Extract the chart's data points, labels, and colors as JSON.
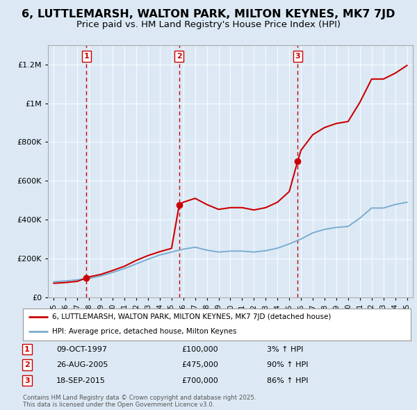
{
  "title": "6, LUTTLEMARSH, WALTON PARK, MILTON KEYNES, MK7 7JD",
  "subtitle": "Price paid vs. HM Land Registry's House Price Index (HPI)",
  "title_fontsize": 11.5,
  "subtitle_fontsize": 9.5,
  "background_color": "#dce9f5",
  "plot_bg_color": "#dce9f5",
  "legend_label_red": "6, LUTTLEMARSH, WALTON PARK, MILTON KEYNES, MK7 7JD (detached house)",
  "legend_label_blue": "HPI: Average price, detached house, Milton Keynes",
  "footer": "Contains HM Land Registry data © Crown copyright and database right 2025.\nThis data is licensed under the Open Government Licence v3.0.",
  "sales": [
    {
      "num": 1,
      "date": "09-OCT-1997",
      "price": 100000,
      "hpi_pct": "3%",
      "x": 1997.77
    },
    {
      "num": 2,
      "date": "26-AUG-2005",
      "price": 475000,
      "hpi_pct": "90%",
      "x": 2005.65
    },
    {
      "num": 3,
      "date": "18-SEP-2015",
      "price": 700000,
      "hpi_pct": "86%",
      "x": 2015.71
    }
  ],
  "ylim": [
    0,
    1300000
  ],
  "xlim": [
    1994.5,
    2025.5
  ],
  "red_color": "#cc0000",
  "blue_color": "#7aadcf",
  "dashed_color": "#cc0000",
  "grid_color": "#ffffff",
  "hpi_years": [
    1995,
    1996,
    1997,
    1998,
    1999,
    2000,
    2001,
    2002,
    2003,
    2004,
    2005,
    2006,
    2007,
    2008,
    2009,
    2010,
    2011,
    2012,
    2013,
    2014,
    2015,
    2016,
    2017,
    2018,
    2019,
    2020,
    2021,
    2022,
    2023,
    2024,
    2025
  ],
  "hpi_values": [
    80000,
    84000,
    90000,
    97000,
    110000,
    128000,
    148000,
    172000,
    196000,
    218000,
    233000,
    248000,
    258000,
    243000,
    233000,
    238000,
    238000,
    233000,
    240000,
    253000,
    275000,
    300000,
    332000,
    350000,
    360000,
    365000,
    408000,
    460000,
    460000,
    478000,
    490000
  ],
  "red_years": [
    1995,
    1996,
    1997,
    1997.77,
    1998,
    1999,
    2000,
    2001,
    2002,
    2003,
    2004,
    2005,
    2005.65,
    2006,
    2007,
    2008,
    2009,
    2010,
    2011,
    2012,
    2013,
    2014,
    2015,
    2015.71,
    2016,
    2017,
    2018,
    2019,
    2020,
    2021,
    2022,
    2023,
    2024,
    2025
  ],
  "red_values": [
    72000,
    76000,
    82000,
    100000,
    105000,
    118000,
    138000,
    160000,
    190000,
    215000,
    235000,
    252000,
    475000,
    490000,
    510000,
    478000,
    453000,
    462000,
    462000,
    450000,
    462000,
    490000,
    545000,
    700000,
    758000,
    838000,
    875000,
    896000,
    906000,
    1005000,
    1125000,
    1125000,
    1155000,
    1195000
  ]
}
